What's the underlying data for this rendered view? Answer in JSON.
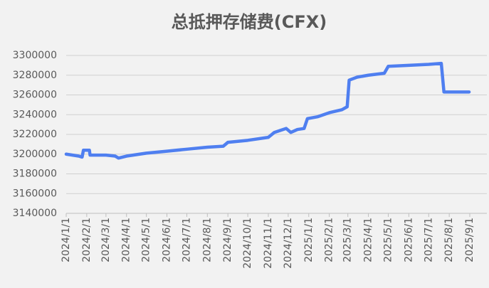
{
  "chart_data": {
    "type": "line",
    "title": "总抵押存储费(CFX)",
    "x": [
      "2024/1/1",
      "2024/1/20",
      "2024/1/25",
      "2024/1/27",
      "2024/2/5",
      "2024/2/6",
      "2024/3/1",
      "2024/3/15",
      "2024/3/20",
      "2024/4/1",
      "2024/5/1",
      "2024/6/1",
      "2024/7/1",
      "2024/8/1",
      "2024/8/25",
      "2024/9/1",
      "2024/10/1",
      "2024/11/1",
      "2024/11/10",
      "2024/11/28",
      "2024/12/5",
      "2024/12/15",
      "2024/12/25",
      "2024/12/30",
      "2025/1/15",
      "2025/2/1",
      "2025/2/20",
      "2025/2/28",
      "2025/3/3",
      "2025/3/15",
      "2025/4/1",
      "2025/4/25",
      "2025/5/1",
      "2025/6/1",
      "2025/7/1",
      "2025/7/20",
      "2025/7/24",
      "2025/8/1",
      "2025/8/31"
    ],
    "series": [
      {
        "name": "总抵押存储费",
        "color": "#4f7ff0",
        "values": [
          3200000,
          3198000,
          3197000,
          3204000,
          3204000,
          3199000,
          3199000,
          3198000,
          3196000,
          3198000,
          3201000,
          3203000,
          3205000,
          3207000,
          3208000,
          3212000,
          3214000,
          3217000,
          3222000,
          3226000,
          3222000,
          3225000,
          3226000,
          3236000,
          3238000,
          3242000,
          3245000,
          3248000,
          3275000,
          3278000,
          3280000,
          3282000,
          3289000,
          3290000,
          3291000,
          3292000,
          3263000,
          3263000,
          3263000
        ]
      }
    ],
    "xlim": [
      "2024/1/1",
      "2025/9/1"
    ],
    "xticks": [
      "2024/1/1",
      "2024/2/1",
      "2024/3/1",
      "2024/4/1",
      "2024/5/1",
      "2024/6/1",
      "2024/7/1",
      "2024/8/1",
      "2024/9/1",
      "2024/10/1",
      "2024/11/1",
      "2024/12/1",
      "2025/1/1",
      "2025/2/1",
      "2025/3/1",
      "2025/4/1",
      "2025/5/1",
      "2025/6/1",
      "2025/7/1",
      "2025/8/1",
      "2025/9/1"
    ],
    "ylim": [
      3140000,
      3300000
    ],
    "yticks": [
      3140000,
      3160000,
      3180000,
      3200000,
      3220000,
      3240000,
      3260000,
      3280000,
      3300000
    ],
    "grid": true
  }
}
